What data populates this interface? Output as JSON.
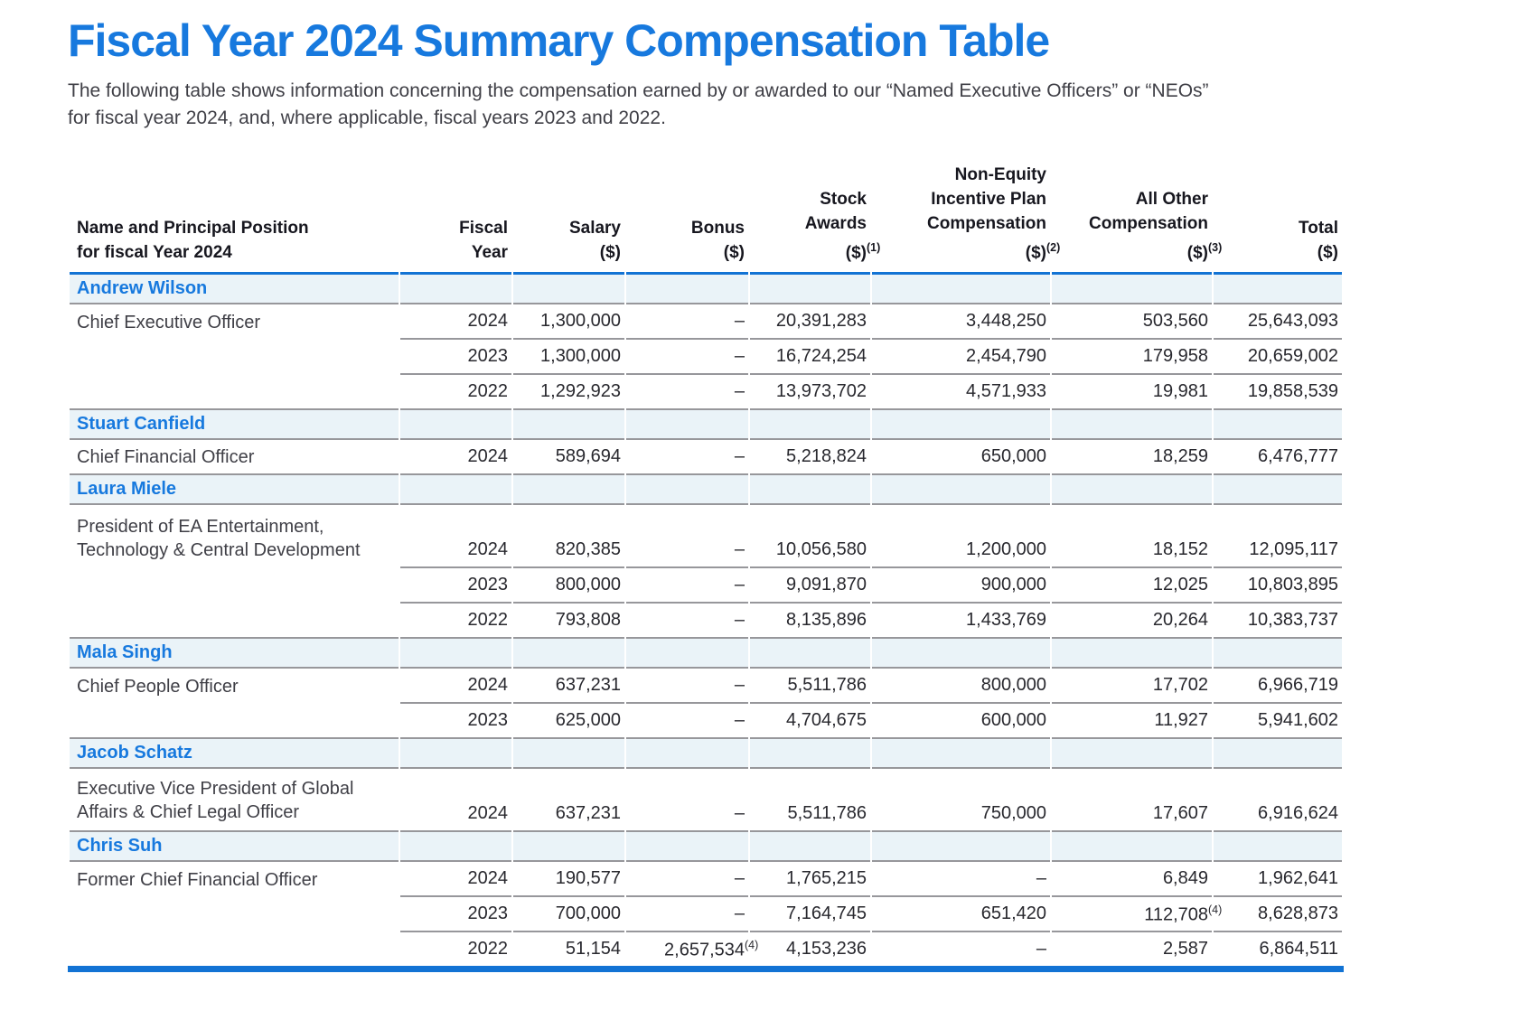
{
  "page": {
    "title": "Fiscal Year 2024 Summary Compensation Table",
    "intro_line1": "The following table shows information concerning the compensation earned by or awarded to our “Named Executive Officers” or “NEOs”",
    "intro_line2": "for fiscal year 2024, and, where applicable, fiscal years 2023 and 2022."
  },
  "colors": {
    "accent": "#1779DE",
    "line_blue": "#1273D4",
    "band_bg": "#EAF3F8",
    "divider": "#97979B",
    "text_dark": "#26262D",
    "text_body": "#3F3F46"
  },
  "table": {
    "columns": [
      {
        "id": "name",
        "align": "left",
        "lines": [
          "Name and Principal Position",
          "for fiscal Year 2024"
        ]
      },
      {
        "id": "fiscal-year",
        "lines": [
          "Fiscal",
          "Year"
        ]
      },
      {
        "id": "salary",
        "lines": [
          "Salary",
          "($)"
        ]
      },
      {
        "id": "bonus",
        "lines": [
          "Bonus",
          "($)"
        ]
      },
      {
        "id": "stock-awards",
        "lines": [
          "Stock",
          "Awards",
          "($)"
        ],
        "sup": "(1)"
      },
      {
        "id": "non-equity-incentive",
        "lines": [
          "Non-Equity",
          "Incentive Plan",
          "Compensation",
          "($)"
        ],
        "sup": "(2)"
      },
      {
        "id": "all-other-compensation",
        "lines": [
          "All Other",
          "Compensation",
          "($)"
        ],
        "sup": "(3)"
      },
      {
        "id": "total",
        "lines": [
          "Total",
          "($)"
        ]
      }
    ],
    "groups": [
      {
        "name": "Andrew Wilson",
        "position_lines": [
          "Chief Executive Officer"
        ],
        "rows": [
          {
            "year": "2024",
            "salary": "1,300,000",
            "bonus": "–",
            "stock": "20,391,283",
            "neip": "3,448,250",
            "other": "503,560",
            "total": "25,643,093"
          },
          {
            "year": "2023",
            "salary": "1,300,000",
            "bonus": "–",
            "stock": "16,724,254",
            "neip": "2,454,790",
            "other": "179,958",
            "total": "20,659,002"
          },
          {
            "year": "2022",
            "salary": "1,292,923",
            "bonus": "–",
            "stock": "13,973,702",
            "neip": "4,571,933",
            "other": "19,981",
            "total": "19,858,539"
          }
        ]
      },
      {
        "name": "Stuart Canfield",
        "position_lines": [
          "Chief Financial Officer"
        ],
        "rows": [
          {
            "year": "2024",
            "salary": "589,694",
            "bonus": "–",
            "stock": "5,218,824",
            "neip": "650,000",
            "other": "18,259",
            "total": "6,476,777"
          }
        ]
      },
      {
        "name": "Laura Miele",
        "position_lines": [
          "President of EA Entertainment,",
          "Technology & Central Development"
        ],
        "rows": [
          {
            "year": "2024",
            "salary": "820,385",
            "bonus": "–",
            "stock": "10,056,580",
            "neip": "1,200,000",
            "other": "18,152",
            "total": "12,095,117"
          },
          {
            "year": "2023",
            "salary": "800,000",
            "bonus": "–",
            "stock": "9,091,870",
            "neip": "900,000",
            "other": "12,025",
            "total": "10,803,895"
          },
          {
            "year": "2022",
            "salary": "793,808",
            "bonus": "–",
            "stock": "8,135,896",
            "neip": "1,433,769",
            "other": "20,264",
            "total": "10,383,737"
          }
        ]
      },
      {
        "name": "Mala Singh",
        "position_lines": [
          "Chief People Officer"
        ],
        "rows": [
          {
            "year": "2024",
            "salary": "637,231",
            "bonus": "–",
            "stock": "5,511,786",
            "neip": "800,000",
            "other": "17,702",
            "total": "6,966,719"
          },
          {
            "year": "2023",
            "salary": "625,000",
            "bonus": "–",
            "stock": "4,704,675",
            "neip": "600,000",
            "other": "11,927",
            "total": "5,941,602"
          }
        ]
      },
      {
        "name": "Jacob Schatz",
        "position_lines": [
          "Executive Vice President of Global",
          "Affairs & Chief Legal Officer"
        ],
        "rows": [
          {
            "year": "2024",
            "salary": "637,231",
            "bonus": "–",
            "stock": "5,511,786",
            "neip": "750,000",
            "other": "17,607",
            "total": "6,916,624"
          }
        ]
      },
      {
        "name": "Chris Suh",
        "position_lines": [
          "Former Chief Financial Officer"
        ],
        "rows": [
          {
            "year": "2024",
            "salary": "190,577",
            "bonus": "–",
            "stock": "1,765,215",
            "neip": "–",
            "other": "6,849",
            "total": "1,962,641"
          },
          {
            "year": "2023",
            "salary": "700,000",
            "bonus": "–",
            "stock": "7,164,745",
            "neip": "651,420",
            "other": "112,708",
            "other_sup": "(4)",
            "total": "8,628,873"
          },
          {
            "year": "2022",
            "salary": "51,154",
            "bonus": "2,657,534",
            "bonus_sup": "(4)",
            "stock": "4,153,236",
            "neip": "–",
            "other": "2,587",
            "total": "6,864,511"
          }
        ]
      }
    ]
  }
}
